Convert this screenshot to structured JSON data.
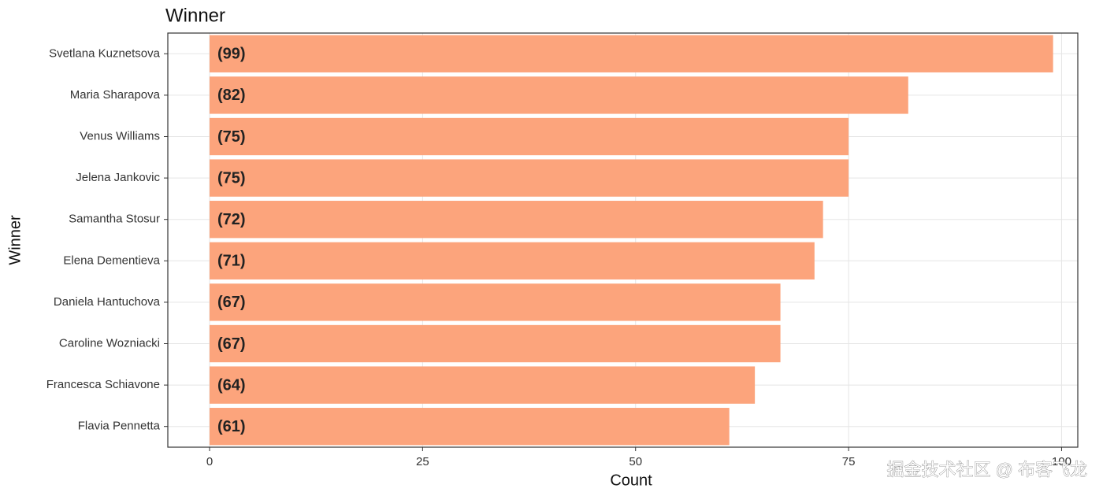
{
  "chart_data": {
    "type": "bar",
    "orientation": "horizontal",
    "title": "Winner",
    "x_label": "Count",
    "y_label": "Winner",
    "categories": [
      "Svetlana Kuznetsova",
      "Maria Sharapova",
      "Venus Williams",
      "Jelena Jankovic",
      "Samantha Stosur",
      "Elena Dementieva",
      "Daniela Hantuchova",
      "Caroline Wozniacki",
      "Francesca Schiavone",
      "Flavia Pennetta"
    ],
    "values": [
      99,
      82,
      75,
      75,
      72,
      71,
      67,
      67,
      64,
      61
    ],
    "value_labels": [
      "(99)",
      "(82)",
      "(75)",
      "(75)",
      "(72)",
      "(71)",
      "(67)",
      "(67)",
      "(64)",
      "(61)"
    ],
    "color": "#fca47c",
    "xlim": [
      -4.9,
      101.9
    ],
    "xticks": [
      0,
      25,
      50,
      75,
      100
    ],
    "grid": true,
    "watermark": "掘金技术社区 @ 布客飞龙"
  }
}
